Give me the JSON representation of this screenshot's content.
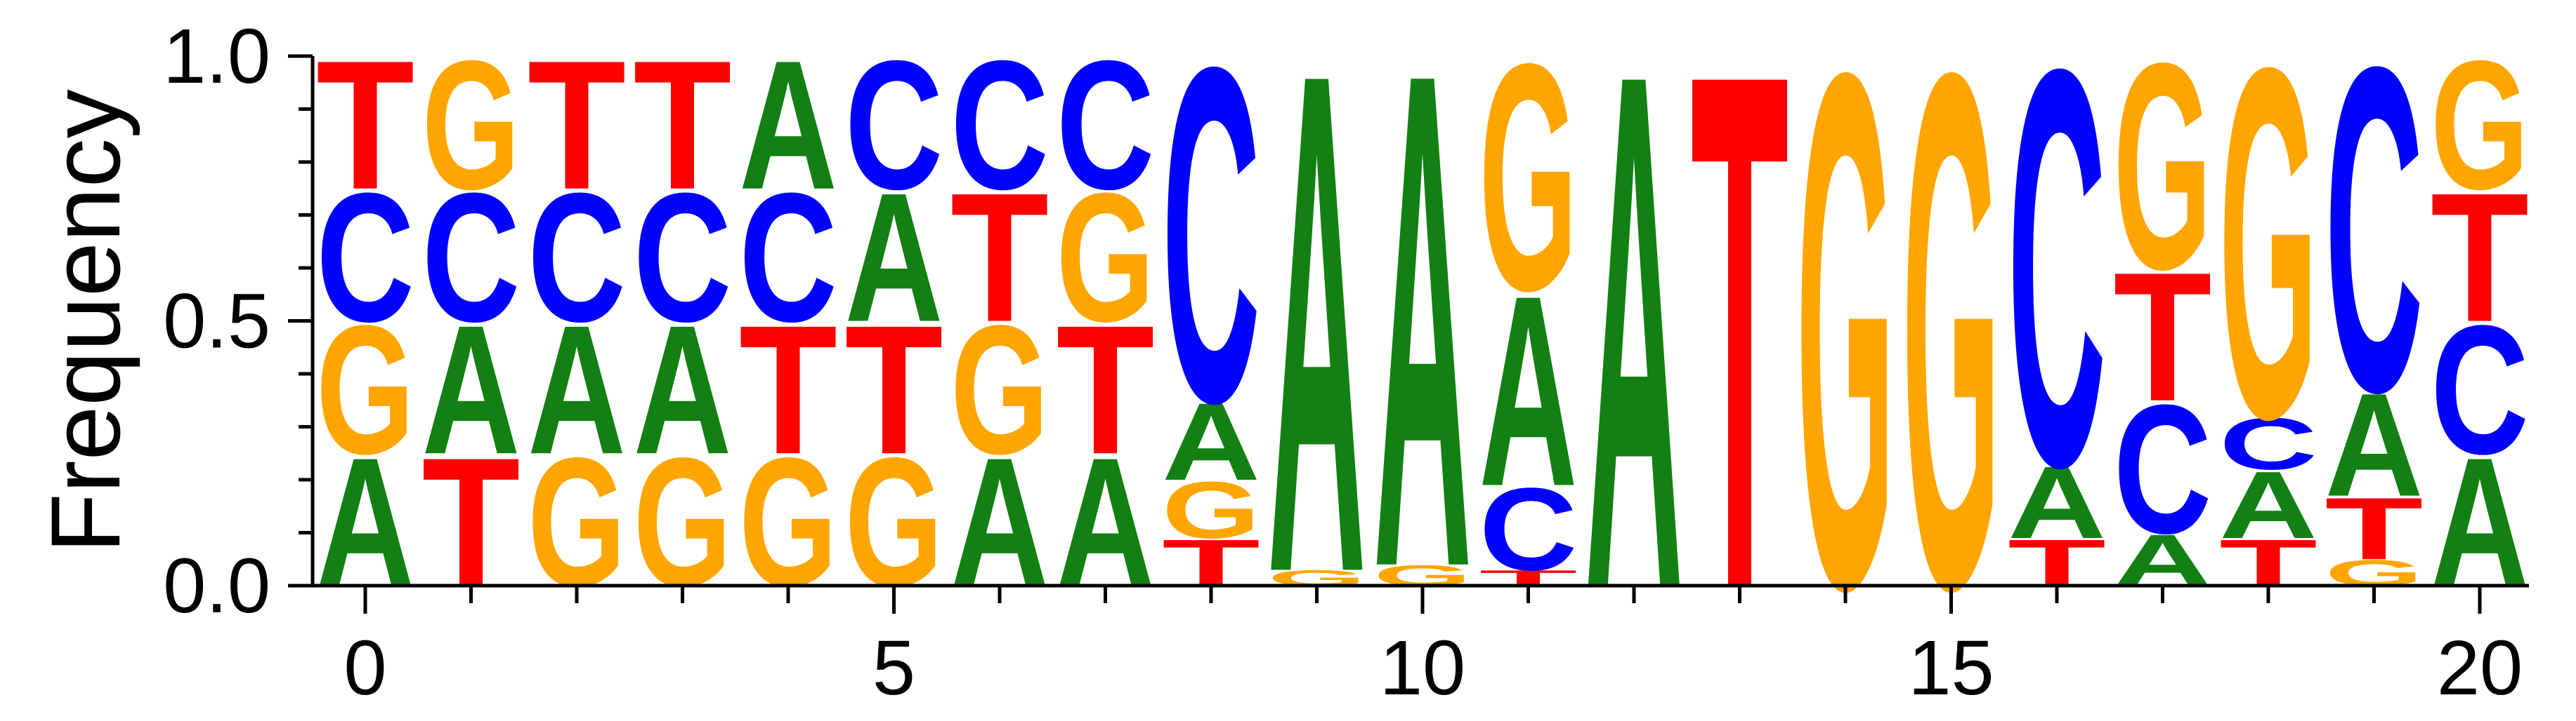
{
  "chart_data": {
    "type": "sequence_logo",
    "xlabel": "",
    "ylabel": "Frequency",
    "xlim": [
      -0.5,
      20.5
    ],
    "ylim": [
      0,
      1
    ],
    "x_ticks": [
      0,
      5,
      10,
      15,
      20
    ],
    "x_tick_labels": [
      "0",
      "5",
      "10",
      "15",
      "20"
    ],
    "y_ticks": [
      0.0,
      0.5,
      1.0
    ],
    "y_tick_labels": [
      "0.0",
      "0.5",
      "1.0"
    ],
    "colors": {
      "A": "#128012",
      "C": "#0000ff",
      "G": "#ffa500",
      "T": "#ff0000"
    },
    "positions": [
      {
        "pos": 0,
        "stack": [
          [
            "A",
            0.25
          ],
          [
            "G",
            0.25
          ],
          [
            "C",
            0.25
          ],
          [
            "T",
            0.25
          ]
        ]
      },
      {
        "pos": 1,
        "stack": [
          [
            "T",
            0.25
          ],
          [
            "A",
            0.25
          ],
          [
            "C",
            0.25
          ],
          [
            "G",
            0.25
          ]
        ]
      },
      {
        "pos": 2,
        "stack": [
          [
            "G",
            0.25
          ],
          [
            "A",
            0.25
          ],
          [
            "C",
            0.25
          ],
          [
            "T",
            0.25
          ]
        ]
      },
      {
        "pos": 3,
        "stack": [
          [
            "G",
            0.25
          ],
          [
            "A",
            0.25
          ],
          [
            "C",
            0.25
          ],
          [
            "T",
            0.25
          ]
        ]
      },
      {
        "pos": 4,
        "stack": [
          [
            "G",
            0.25
          ],
          [
            "T",
            0.25
          ],
          [
            "C",
            0.25
          ],
          [
            "A",
            0.25
          ]
        ]
      },
      {
        "pos": 5,
        "stack": [
          [
            "G",
            0.25
          ],
          [
            "T",
            0.25
          ],
          [
            "A",
            0.25
          ],
          [
            "C",
            0.25
          ]
        ]
      },
      {
        "pos": 6,
        "stack": [
          [
            "A",
            0.25
          ],
          [
            "G",
            0.25
          ],
          [
            "T",
            0.25
          ],
          [
            "C",
            0.25
          ]
        ]
      },
      {
        "pos": 7,
        "stack": [
          [
            "A",
            0.25
          ],
          [
            "T",
            0.25
          ],
          [
            "G",
            0.25
          ],
          [
            "C",
            0.25
          ]
        ]
      },
      {
        "pos": 8,
        "stack": [
          [
            "T",
            0.09
          ],
          [
            "G",
            0.11
          ],
          [
            "A",
            0.15
          ],
          [
            "C",
            0.65
          ]
        ]
      },
      {
        "pos": 9,
        "stack": [
          [
            "G",
            0.03
          ],
          [
            "A",
            0.97
          ]
        ]
      },
      {
        "pos": 10,
        "stack": [
          [
            "G",
            0.04
          ],
          [
            "A",
            0.96
          ]
        ]
      },
      {
        "pos": 11,
        "stack": [
          [
            "T",
            0.03
          ],
          [
            "C",
            0.16
          ],
          [
            "A",
            0.37
          ],
          [
            "G",
            0.44
          ]
        ]
      },
      {
        "pos": 12,
        "stack": [
          [
            "A",
            1.0
          ]
        ]
      },
      {
        "pos": 13,
        "stack": [
          [
            "T",
            1.0
          ]
        ]
      },
      {
        "pos": 14,
        "stack": [
          [
            "G",
            1.0
          ]
        ]
      },
      {
        "pos": 15,
        "stack": [
          [
            "G",
            1.0
          ]
        ]
      },
      {
        "pos": 16,
        "stack": [
          [
            "T",
            0.09
          ],
          [
            "A",
            0.14
          ],
          [
            "C",
            0.77
          ]
        ]
      },
      {
        "pos": 17,
        "stack": [
          [
            "A",
            0.1
          ],
          [
            "C",
            0.25
          ],
          [
            "T",
            0.25
          ],
          [
            "G",
            0.4
          ]
        ]
      },
      {
        "pos": 18,
        "stack": [
          [
            "T",
            0.09
          ],
          [
            "A",
            0.13
          ],
          [
            "C",
            0.1
          ],
          [
            "G",
            0.68
          ]
        ]
      },
      {
        "pos": 19,
        "stack": [
          [
            "G",
            0.05
          ],
          [
            "T",
            0.12
          ],
          [
            "A",
            0.2
          ],
          [
            "C",
            0.63
          ]
        ]
      },
      {
        "pos": 20,
        "stack": [
          [
            "A",
            0.25
          ],
          [
            "C",
            0.25
          ],
          [
            "T",
            0.25
          ],
          [
            "G",
            0.25
          ]
        ]
      }
    ]
  }
}
